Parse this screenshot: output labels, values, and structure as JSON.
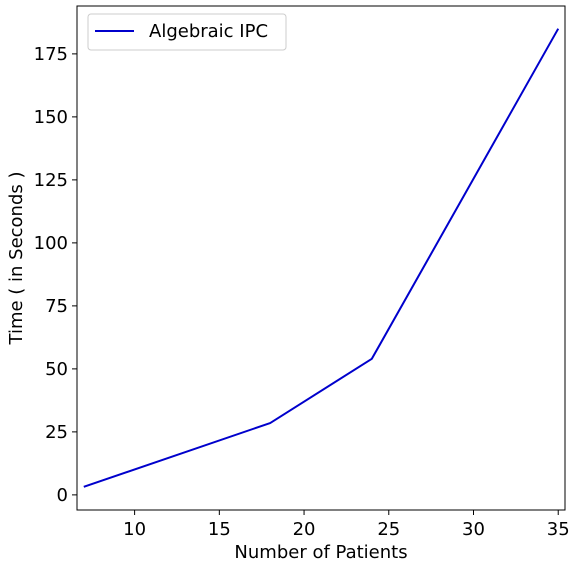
{
  "chart_data": {
    "type": "line",
    "xlabel": "Number of Patients",
    "ylabel": "Time ( in Seconds )",
    "xlim": [
      6.6,
      35.4
    ],
    "ylim": [
      -6.0,
      194.0
    ],
    "xticks": [
      10,
      15,
      20,
      25,
      30,
      35
    ],
    "yticks": [
      0,
      25,
      50,
      75,
      100,
      125,
      150,
      175
    ],
    "grid": false,
    "legend_position": "top-left",
    "series": [
      {
        "name": "Algebraic IPC",
        "color": "#0000cc",
        "x": [
          7,
          18,
          24,
          35
        ],
        "y": [
          3.2,
          28.5,
          54.0,
          185.0
        ]
      }
    ]
  }
}
